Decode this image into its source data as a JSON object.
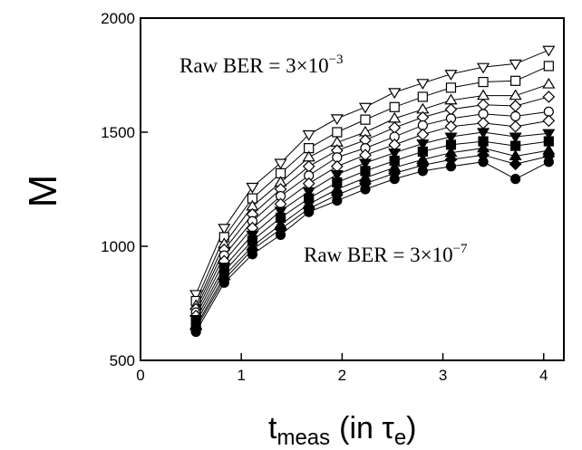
{
  "chart_data": {
    "type": "line",
    "title": "",
    "ylabel": "M",
    "xlabel": {
      "main": "t",
      "sub": "meas",
      "rest": "(in τ",
      "rest_sub": "e",
      "close": ")"
    },
    "xlim": [
      0,
      4.2
    ],
    "ylim": [
      500,
      2000
    ],
    "xticks": [
      0,
      1,
      2,
      3,
      4
    ],
    "yticks": [
      500,
      1000,
      1500,
      2000
    ],
    "xtick_labels": [
      "0",
      "1",
      "2",
      "3",
      "4"
    ],
    "ytick_labels": [
      "500",
      "1000",
      "1500",
      "2000"
    ],
    "grid": false,
    "annotations": [
      {
        "text": "Raw  BER = 3×10",
        "exponent": "−3"
      },
      {
        "text": "Raw  BER = 3×10",
        "exponent": "−7"
      }
    ],
    "x": [
      0.55,
      0.83,
      1.11,
      1.39,
      1.67,
      1.95,
      2.23,
      2.52,
      2.8,
      3.08,
      3.4,
      3.72,
      4.05
    ],
    "series": [
      {
        "marker": "triangle-down-open",
        "values": [
          790,
          1080,
          1260,
          1365,
          1490,
          1560,
          1610,
          1675,
          1715,
          1755,
          1785,
          1800,
          1860
        ]
      },
      {
        "marker": "square-open",
        "values": [
          760,
          1040,
          1210,
          1320,
          1430,
          1500,
          1555,
          1610,
          1655,
          1695,
          1720,
          1725,
          1790
        ]
      },
      {
        "marker": "triangle-up-open",
        "values": [
          740,
          1010,
          1175,
          1280,
          1390,
          1455,
          1500,
          1560,
          1600,
          1640,
          1660,
          1660,
          1710
        ]
      },
      {
        "marker": "diamond-open",
        "values": [
          725,
          985,
          1140,
          1250,
          1350,
          1420,
          1465,
          1520,
          1565,
          1600,
          1620,
          1615,
          1655
        ]
      },
      {
        "marker": "circle-open",
        "values": [
          710,
          960,
          1110,
          1220,
          1310,
          1390,
          1430,
          1480,
          1530,
          1560,
          1580,
          1570,
          1590
        ]
      },
      {
        "marker": "diamond-open",
        "values": [
          695,
          935,
          1080,
          1185,
          1275,
          1350,
          1400,
          1445,
          1490,
          1525,
          1540,
          1525,
          1550
        ]
      },
      {
        "marker": "triangle-down-filled",
        "values": [
          680,
          910,
          1050,
          1155,
          1240,
          1315,
          1365,
          1410,
          1450,
          1480,
          1500,
          1480,
          1495
        ]
      },
      {
        "marker": "square-filled",
        "values": [
          665,
          890,
          1025,
          1125,
          1210,
          1280,
          1330,
          1375,
          1415,
          1445,
          1460,
          1440,
          1460
        ]
      },
      {
        "marker": "triangle-up-filled",
        "values": [
          650,
          870,
          1000,
          1095,
          1185,
          1250,
          1300,
          1345,
          1380,
          1410,
          1430,
          1395,
          1420
        ]
      },
      {
        "marker": "diamond-filled",
        "values": [
          640,
          855,
          985,
          1075,
          1165,
          1225,
          1275,
          1320,
          1355,
          1380,
          1400,
          1360,
          1395
        ]
      },
      {
        "marker": "circle-filled",
        "values": [
          625,
          840,
          965,
          1050,
          1150,
          1200,
          1250,
          1295,
          1330,
          1350,
          1370,
          1295,
          1370
        ]
      }
    ]
  }
}
